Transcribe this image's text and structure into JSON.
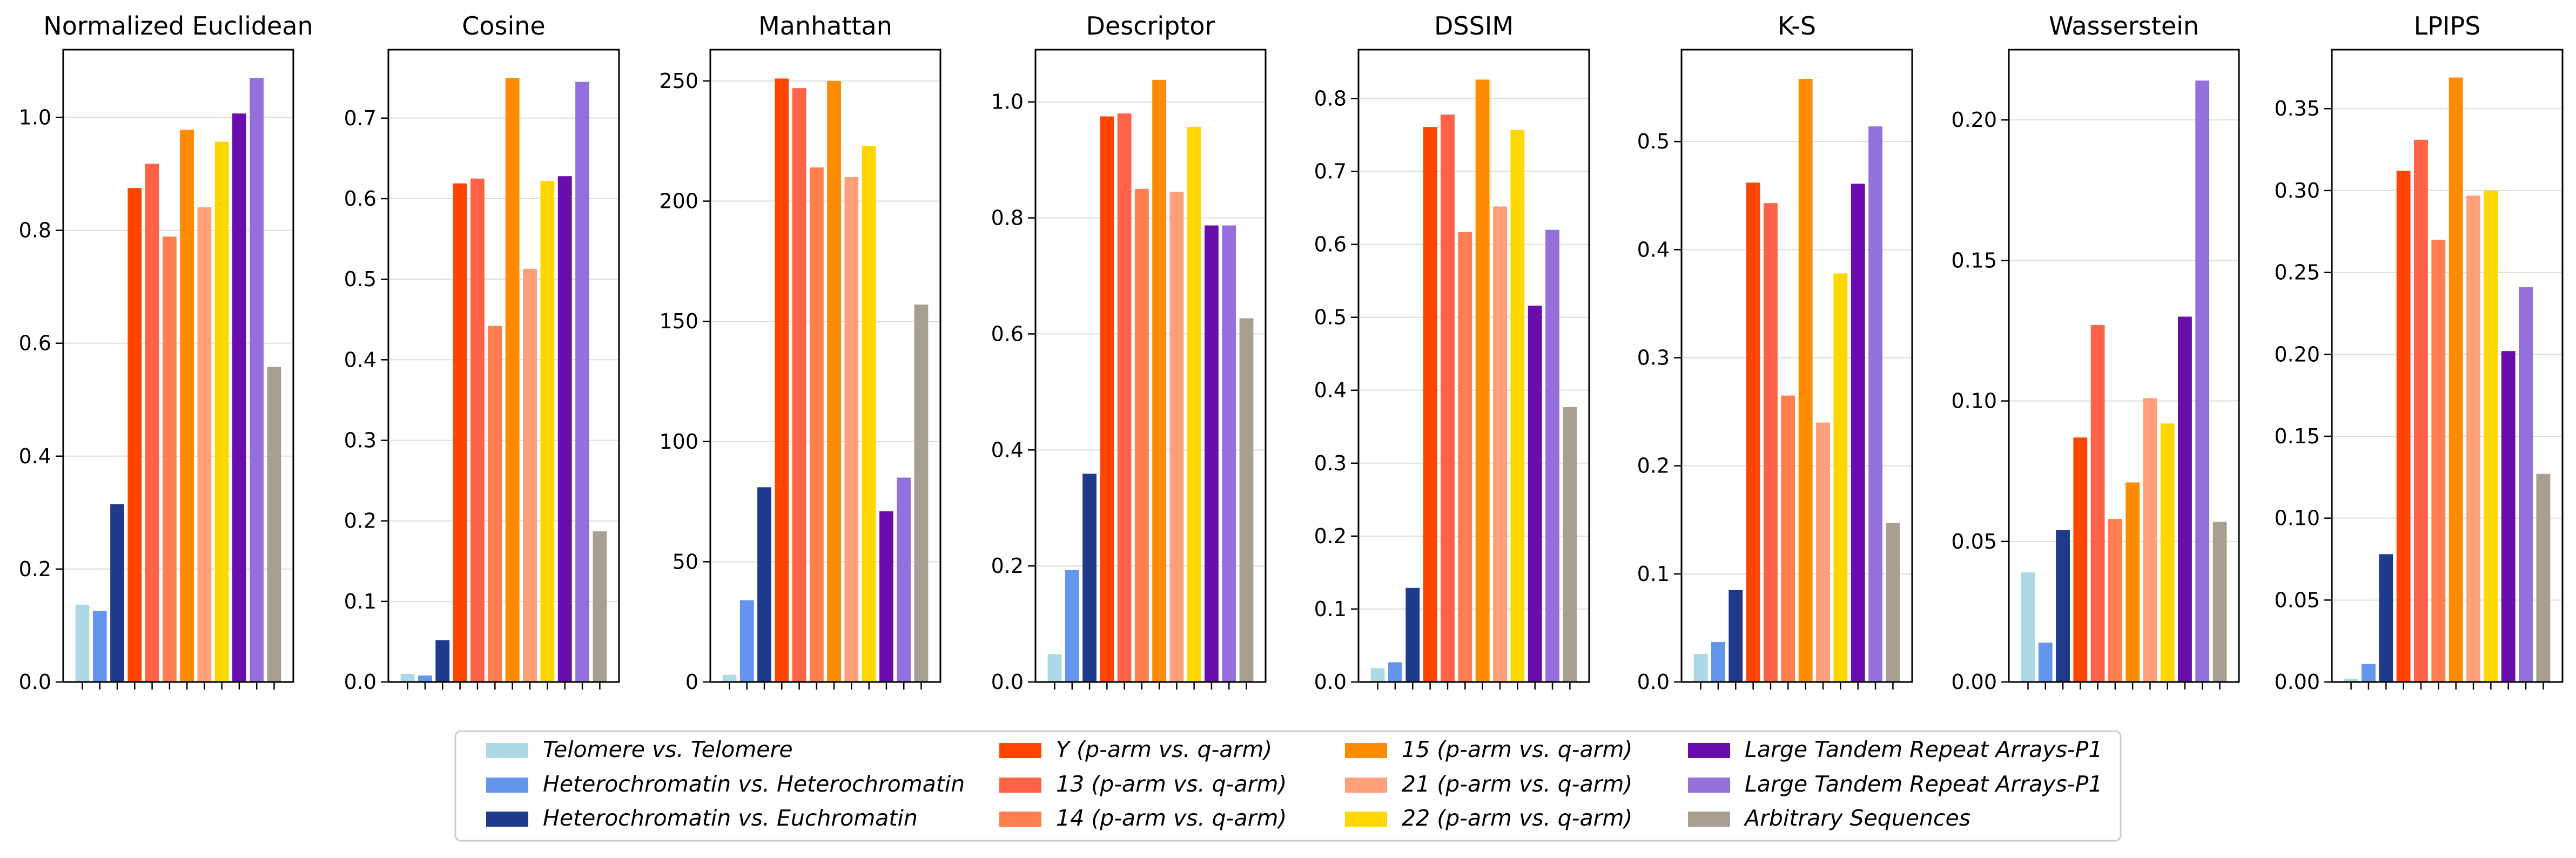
{
  "categories": [
    "Telomere vs. Telomere",
    "Heterochromatin vs. Heterochromatin",
    "Heterochromatin vs. Euchromatin",
    "Y (p-arm vs. q-arm)",
    "13 (p-arm vs. q-arm)",
    "14 (p-arm vs. q-arm)",
    "15 (p-arm vs. q-arm)",
    "21 (p-arm vs. q-arm)",
    "22 (p-arm vs. q-arm)",
    "Large Tandem Repeat Arrays-P1",
    "Large Tandem Repeat Arrays-P1",
    "Arbitrary Sequences"
  ],
  "colors": [
    "#add8e6",
    "#6495ed",
    "#1f3a8a",
    "#ff4500",
    "#ff6347",
    "#ff7f50",
    "#ff8c00",
    "#ffa07a",
    "#ffd700",
    "#6a0dad",
    "#9370db",
    "#a89f91"
  ],
  "legend": {
    "placement": "bottom-center",
    "columns": [
      [
        "Telomere vs. Telomere",
        "Heterochromatin vs. Heterochromatin",
        "Heterochromatin vs. Euchromatin"
      ],
      [
        "Y (p-arm vs. q-arm)",
        "13 (p-arm vs. q-arm)",
        "14 (p-arm vs. q-arm)"
      ],
      [
        "15 (p-arm vs. q-arm)",
        "21 (p-arm vs. q-arm)",
        "22 (p-arm vs. q-arm)"
      ],
      [
        "Large Tandem Repeat Arrays-P1",
        "Large Tandem Repeat Arrays-P1",
        "Arbitrary Sequences"
      ]
    ]
  },
  "chart_data": [
    {
      "type": "bar",
      "title": "Normalized Euclidean",
      "ylim": [
        0,
        1.12
      ],
      "yticks": [
        0.0,
        0.2,
        0.4,
        0.6,
        0.8,
        1.0
      ],
      "ytick_labels": [
        "0.0",
        "0.2",
        "0.4",
        "0.6",
        "0.8",
        "1.0"
      ],
      "grid": "y",
      "values": [
        0.137,
        0.126,
        0.315,
        0.875,
        0.918,
        0.789,
        0.978,
        0.841,
        0.957,
        1.007,
        1.07,
        0.558
      ]
    },
    {
      "type": "bar",
      "title": "Cosine",
      "ylim": [
        0,
        0.785
      ],
      "yticks": [
        0.0,
        0.1,
        0.2,
        0.3,
        0.4,
        0.5,
        0.6,
        0.7
      ],
      "ytick_labels": [
        "0.0",
        "0.1",
        "0.2",
        "0.3",
        "0.4",
        "0.5",
        "0.6",
        "0.7"
      ],
      "grid": "y",
      "values": [
        0.01,
        0.008,
        0.052,
        0.619,
        0.625,
        0.442,
        0.75,
        0.513,
        0.622,
        0.628,
        0.745,
        0.187
      ]
    },
    {
      "type": "bar",
      "title": "Manhattan",
      "ylim": [
        0,
        263
      ],
      "yticks": [
        0,
        50,
        100,
        150,
        200,
        250
      ],
      "ytick_labels": [
        "0",
        "50",
        "100",
        "150",
        "200",
        "250"
      ],
      "grid": "y",
      "values": [
        3,
        34,
        81,
        251,
        247,
        214,
        250,
        210,
        223,
        71,
        85,
        157
      ]
    },
    {
      "type": "bar",
      "title": "Descriptor",
      "ylim": [
        0,
        1.09
      ],
      "yticks": [
        0.0,
        0.2,
        0.4,
        0.6,
        0.8,
        1.0
      ],
      "ytick_labels": [
        "0.0",
        "0.2",
        "0.4",
        "0.6",
        "0.8",
        "1.0"
      ],
      "grid": "y",
      "values": [
        0.048,
        0.193,
        0.359,
        0.975,
        0.98,
        0.85,
        1.038,
        0.845,
        0.957,
        0.787,
        0.787,
        0.627
      ]
    },
    {
      "type": "bar",
      "title": "DSSIM",
      "ylim": [
        0,
        0.867
      ],
      "yticks": [
        0.0,
        0.1,
        0.2,
        0.3,
        0.4,
        0.5,
        0.6,
        0.7,
        0.8
      ],
      "ytick_labels": [
        "0.0",
        "0.1",
        "0.2",
        "0.3",
        "0.4",
        "0.5",
        "0.6",
        "0.7",
        "0.8"
      ],
      "grid": "y",
      "values": [
        0.019,
        0.027,
        0.129,
        0.761,
        0.778,
        0.617,
        0.826,
        0.652,
        0.757,
        0.516,
        0.62,
        0.377
      ]
    },
    {
      "type": "bar",
      "title": "K-S",
      "ylim": [
        0,
        0.585
      ],
      "yticks": [
        0.0,
        0.1,
        0.2,
        0.3,
        0.4,
        0.5
      ],
      "ytick_labels": [
        "0.0",
        "0.1",
        "0.2",
        "0.3",
        "0.4",
        "0.5"
      ],
      "grid": "y",
      "values": [
        0.026,
        0.037,
        0.085,
        0.462,
        0.443,
        0.265,
        0.558,
        0.24,
        0.378,
        0.461,
        0.514,
        0.147
      ]
    },
    {
      "type": "bar",
      "title": "Wasserstein",
      "ylim": [
        0,
        0.225
      ],
      "yticks": [
        0.0,
        0.05,
        0.1,
        0.15,
        0.2
      ],
      "ytick_labels": [
        "0.00",
        "0.05",
        "0.10",
        "0.15",
        "0.20"
      ],
      "grid": "y",
      "values": [
        0.039,
        0.014,
        0.054,
        0.087,
        0.127,
        0.058,
        0.071,
        0.101,
        0.092,
        0.13,
        0.214,
        0.057
      ]
    },
    {
      "type": "bar",
      "title": "LPIPS",
      "ylim": [
        0,
        0.386
      ],
      "yticks": [
        0.0,
        0.05,
        0.1,
        0.15,
        0.2,
        0.25,
        0.3,
        0.35
      ],
      "ytick_labels": [
        "0.00",
        "0.05",
        "0.10",
        "0.15",
        "0.20",
        "0.25",
        "0.30",
        "0.35"
      ],
      "grid": "y",
      "values": [
        0.002,
        0.011,
        0.078,
        0.312,
        0.331,
        0.27,
        0.369,
        0.297,
        0.3,
        0.202,
        0.241,
        0.127
      ]
    }
  ]
}
